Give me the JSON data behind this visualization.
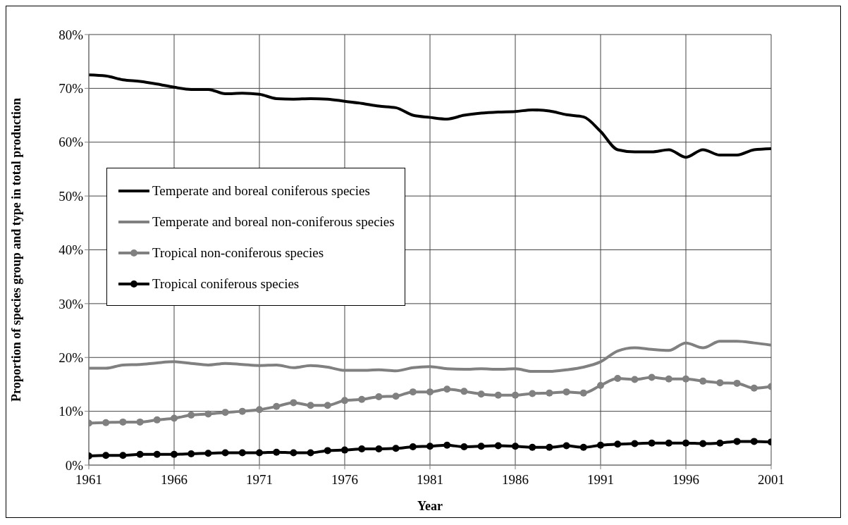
{
  "chart_data": {
    "type": "line",
    "xlabel": "Year",
    "ylabel": "Proportion of species group and type in total production",
    "x": [
      1961,
      1962,
      1963,
      1964,
      1965,
      1966,
      1967,
      1968,
      1969,
      1970,
      1971,
      1972,
      1973,
      1974,
      1975,
      1976,
      1977,
      1978,
      1979,
      1980,
      1981,
      1982,
      1983,
      1984,
      1985,
      1986,
      1987,
      1988,
      1989,
      1990,
      1991,
      1992,
      1993,
      1994,
      1995,
      1996,
      1997,
      1998,
      1999,
      2000,
      2001
    ],
    "series": [
      {
        "name": "Temperate and boreal coniferous species",
        "color": "#000000",
        "marker": "none",
        "values": [
          72.5,
          72.3,
          71.6,
          71.3,
          70.8,
          70.2,
          69.8,
          69.8,
          69.0,
          69.1,
          68.9,
          68.1,
          68.0,
          68.1,
          68.0,
          67.6,
          67.2,
          66.7,
          66.4,
          65.0,
          64.6,
          64.3,
          65.0,
          65.4,
          65.6,
          65.7,
          66.0,
          65.8,
          65.1,
          64.7,
          62.0,
          58.6,
          58.2,
          58.2,
          58.6,
          57.2,
          58.6,
          57.6,
          57.6,
          58.6,
          58.8
        ]
      },
      {
        "name": "Temperate and boreal non-coniferous species",
        "color": "#808080",
        "marker": "none",
        "values": [
          18.0,
          18.0,
          18.6,
          18.7,
          19.0,
          19.2,
          18.9,
          18.6,
          18.9,
          18.7,
          18.5,
          18.6,
          18.1,
          18.5,
          18.2,
          17.6,
          17.6,
          17.7,
          17.5,
          18.1,
          18.3,
          17.9,
          17.8,
          17.9,
          17.8,
          17.9,
          17.4,
          17.4,
          17.7,
          18.2,
          19.2,
          21.2,
          21.8,
          21.5,
          21.3,
          22.7,
          21.8,
          23.0,
          23.0,
          22.7,
          22.3
        ]
      },
      {
        "name": "Tropical non-coniferous species",
        "color": "#808080",
        "marker": "circle",
        "values": [
          7.8,
          7.9,
          8.0,
          8.0,
          8.4,
          8.7,
          9.3,
          9.5,
          9.8,
          10.0,
          10.3,
          10.9,
          11.6,
          11.1,
          11.1,
          12.0,
          12.2,
          12.7,
          12.8,
          13.6,
          13.6,
          14.1,
          13.7,
          13.2,
          13.0,
          13.0,
          13.3,
          13.4,
          13.6,
          13.4,
          14.8,
          16.1,
          15.9,
          16.3,
          16.0,
          16.0,
          15.6,
          15.3,
          15.2,
          14.3,
          14.6
        ]
      },
      {
        "name": "Tropical coniferous species",
        "color": "#000000",
        "marker": "circle",
        "values": [
          1.7,
          1.8,
          1.8,
          2.0,
          2.0,
          2.0,
          2.1,
          2.2,
          2.3,
          2.3,
          2.3,
          2.4,
          2.3,
          2.3,
          2.7,
          2.8,
          3.0,
          3.0,
          3.1,
          3.4,
          3.5,
          3.7,
          3.4,
          3.5,
          3.6,
          3.5,
          3.3,
          3.3,
          3.6,
          3.3,
          3.7,
          3.9,
          4.0,
          4.1,
          4.1,
          4.1,
          4.0,
          4.1,
          4.4,
          4.4,
          4.3
        ]
      }
    ],
    "xlim": [
      1961,
      2001
    ],
    "xticks": [
      1961,
      1966,
      1971,
      1976,
      1981,
      1986,
      1991,
      1996,
      2001
    ],
    "ylim": [
      0,
      80
    ],
    "yticks": [
      {
        "value": 0,
        "label": "0%"
      },
      {
        "value": 10,
        "label": "10%"
      },
      {
        "value": 20,
        "label": "20%"
      },
      {
        "value": 30,
        "label": "30%"
      },
      {
        "value": 40,
        "label": "40%"
      },
      {
        "value": 50,
        "label": "50%"
      },
      {
        "value": 60,
        "label": "60%"
      },
      {
        "value": 70,
        "label": "70%"
      },
      {
        "value": 80,
        "label": "80%"
      }
    ],
    "grid": true,
    "legend": "left",
    "line_style": "solid"
  }
}
